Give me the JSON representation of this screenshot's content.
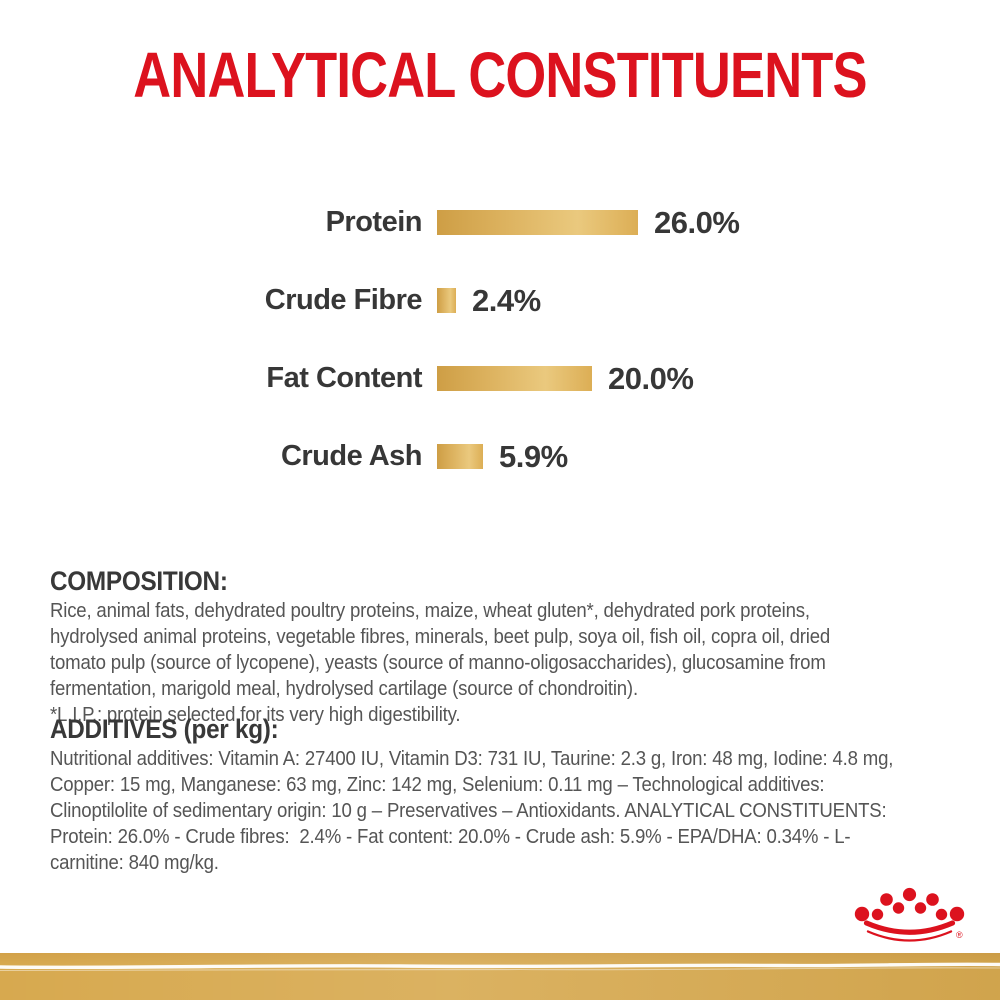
{
  "title": "ANALYTICAL CONSTITUENTS",
  "colors": {
    "brand_red": "#DC121E",
    "gold": "#D7A94F",
    "gold_light": "#EAC97E",
    "gold_dark": "#CB9A3F",
    "heading_text": "#383838",
    "body_text": "#555555"
  },
  "chart": {
    "items": [
      {
        "label": "Protein",
        "value": 26.0,
        "display": "26.0%"
      },
      {
        "label": "Crude Fibre",
        "value": 2.4,
        "display": "2.4%"
      },
      {
        "label": "Fat Content",
        "value": 20.0,
        "display": "20.0%"
      },
      {
        "label": "Crude Ash",
        "value": 5.9,
        "display": "5.9%"
      }
    ]
  },
  "chart_data": {
    "type": "bar",
    "orientation": "horizontal",
    "title": "ANALYTICAL CONSTITUENTS",
    "categories": [
      "Protein",
      "Crude Fibre",
      "Fat Content",
      "Crude Ash"
    ],
    "values": [
      26.0,
      2.4,
      20.0,
      5.9
    ],
    "value_labels": [
      "26.0%",
      "2.4%",
      "20.0%",
      "5.9%"
    ],
    "unit": "%",
    "xlim": [
      0,
      26
    ],
    "grid": false,
    "bar_colors": "gold-gradient"
  },
  "composition": {
    "heading": "COMPOSITION:",
    "lines": [
      "Rice, animal fats, dehydrated poultry proteins, maize, wheat gluten*, dehydrated pork proteins,",
      "hydrolysed animal proteins, vegetable fibres, minerals, beet pulp, soya oil, fish oil, copra oil, dried",
      "tomato pulp (source of lycopene), yeasts (source of manno-oligosaccharides), glucosamine from",
      "fermentation, marigold meal, hydrolysed cartilage (source of chondroitin)."
    ],
    "footnote": "*L.I.P.: protein selected for its very high digestibility."
  },
  "additives": {
    "heading": "ADDITIVES (per kg):",
    "lines": [
      "Nutritional additives: Vitamin A: 27400 IU, Vitamin D3: 731 IU, Taurine: 2.3 g, Iron: 48 mg, Iodine: 4.8 mg,",
      "Copper: 15 mg, Manganese: 63 mg, Zinc: 142 mg, Selenium: 0.11 mg – Technological additives:",
      "Clinoptilolite of sedimentary origin: 10 g – Preservatives – Antioxidants. ANALYTICAL CONSTITUENTS:",
      "Protein: 26.0% - Crude fibres:  2.4% - Fat content: 20.0% - Crude ash: 5.9% - EPA/DHA: 0.34% - L-",
      "carnitine: 840 mg/kg."
    ]
  },
  "footer": {
    "logo": "royal-canin-crown",
    "trademark": "®"
  }
}
